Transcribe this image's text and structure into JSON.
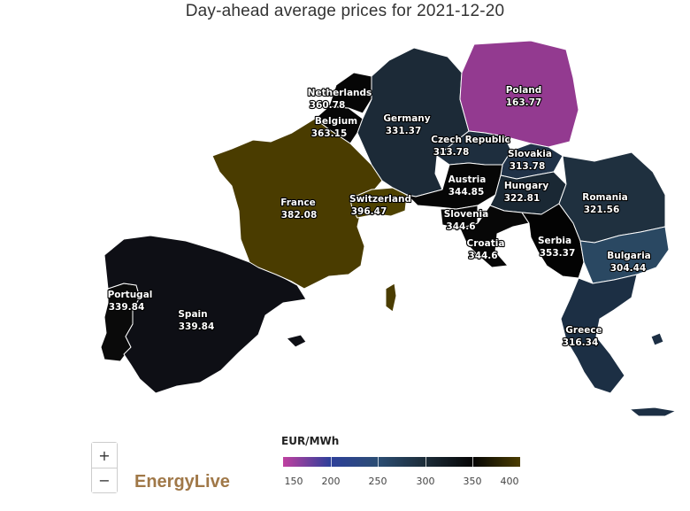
{
  "title": "Day-ahead average prices for 2021-12-20",
  "colors": {
    "p150": "#c040a0",
    "p200": "#2d3f9a",
    "p250": "#2b4d73",
    "p300": "#1c2c38",
    "p350": "#050505",
    "p400": "#4a3c00"
  },
  "countries": {
    "netherlands": {
      "name": "Netherlands",
      "price": "360.78"
    },
    "belgium": {
      "name": "Belgium",
      "price": "363.15"
    },
    "germany": {
      "name": "Germany",
      "price": "331.37"
    },
    "poland": {
      "name": "Poland",
      "price": "163.77"
    },
    "czech_republic": {
      "name": "Czech Republic",
      "price": "313.78"
    },
    "slovakia": {
      "name": "Slovakia",
      "price": "313.78"
    },
    "france": {
      "name": "France",
      "price": "382.08"
    },
    "switzerland": {
      "name": "Switzerland",
      "price": "396.47"
    },
    "austria": {
      "name": "Austria",
      "price": "344.85"
    },
    "hungary": {
      "name": "Hungary",
      "price": "322.81"
    },
    "romania": {
      "name": "Romania",
      "price": "321.56"
    },
    "slovenia": {
      "name": "Slovenia",
      "price": "344.6"
    },
    "croatia": {
      "name": "Croatia",
      "price": "344.6"
    },
    "serbia": {
      "name": "Serbia",
      "price": "353.37"
    },
    "bulgaria": {
      "name": "Bulgaria",
      "price": "304.44"
    },
    "portugal": {
      "name": "Portugal",
      "price": "339.84"
    },
    "spain": {
      "name": "Spain",
      "price": "339.84"
    },
    "greece": {
      "name": "Greece",
      "price": "316.34"
    }
  },
  "zoom": {
    "in_label": "+",
    "out_label": "−"
  },
  "brand": "EnergyLive",
  "legend": {
    "title": "EUR/MWh",
    "ticks": [
      "150",
      "200",
      "250",
      "300",
      "350",
      "400"
    ]
  }
}
